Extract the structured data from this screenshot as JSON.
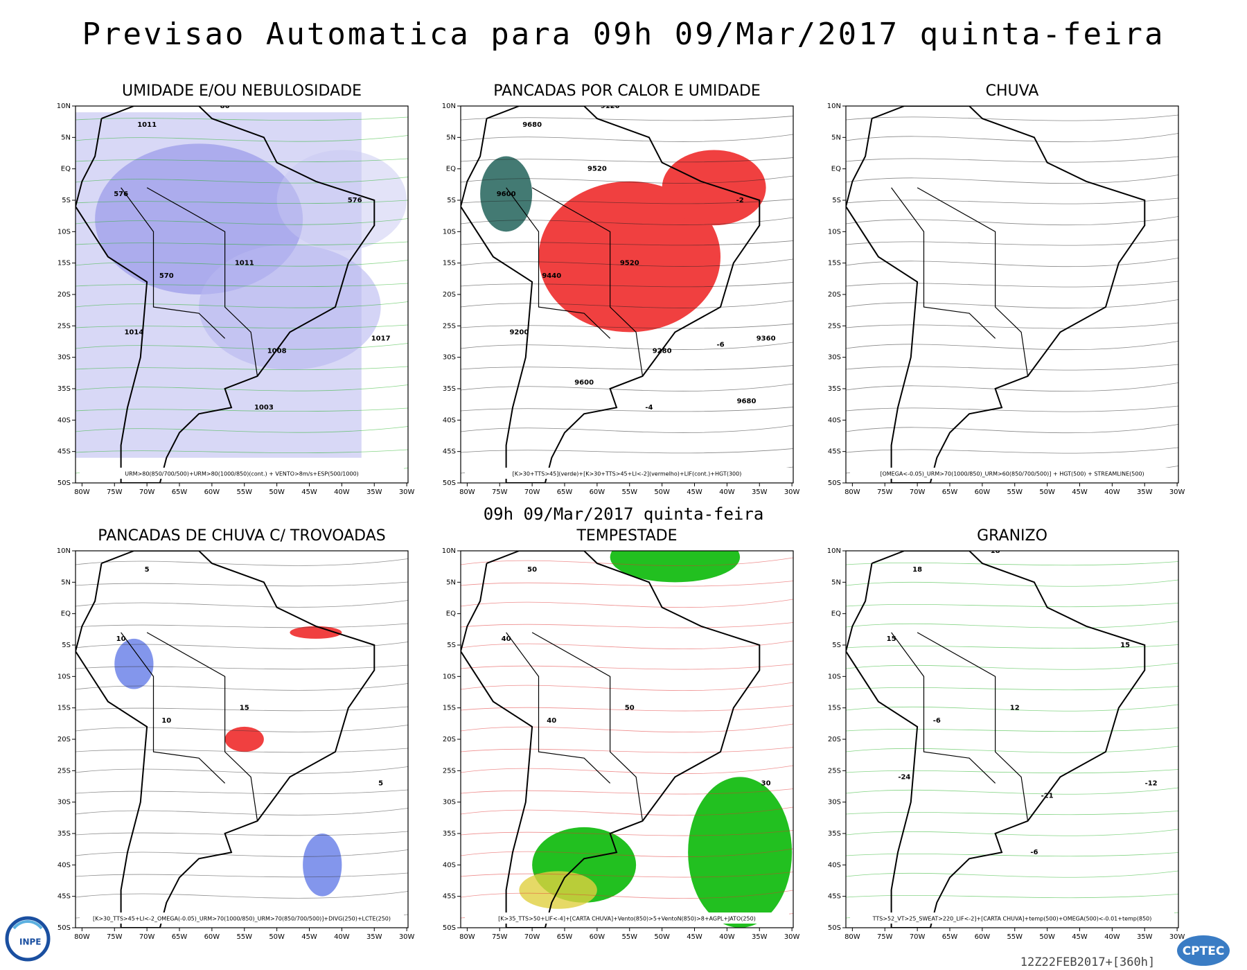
{
  "header": {
    "title": "Previsao Automatica  para 09h 09/Mar/2017 quinta-feira"
  },
  "subheader": "09h 09/Mar/2017 quinta-feira",
  "lat_labels": [
    "10N",
    "5N",
    "EQ",
    "5S",
    "10S",
    "15S",
    "20S",
    "25S",
    "30S",
    "35S",
    "40S",
    "45S",
    "50S"
  ],
  "lon_labels": [
    "80W",
    "75W",
    "70W",
    "65W",
    "60W",
    "55W",
    "50W",
    "45W",
    "40W",
    "35W",
    "30W"
  ],
  "panels": [
    {
      "title": "UMIDADE E/OU NEBULOSIDADE",
      "caption": "URM>80(850/700/500)+URM>80(1000/850)(cont.) + VENTO>8m/s+ESP(500/1000)",
      "labels": [
        "1011",
        "576",
        "1011",
        "570",
        "1017",
        "1008",
        "1014",
        "80",
        "576",
        "1003"
      ]
    },
    {
      "title": "PANCADAS POR CALOR E UMIDADE",
      "caption": "[K>30+TTS>45](verde)+[K>30+TTS>45+LI<-2](vermelho)+LIF(cont.)+HGT(300)",
      "labels": [
        "9680",
        "9600",
        "9520",
        "9440",
        "9360",
        "9280",
        "9200",
        "9120",
        "-2",
        "-4",
        "-6",
        "9680",
        "9600",
        "9520"
      ]
    },
    {
      "title": "CHUVA",
      "caption": "[OMEGA<-0.05)_URM>70(1000/850)_URM>60(850/700/500)] + HGT(500) + STREAMLINE(500)",
      "labels": []
    },
    {
      "title": "PANCADAS DE CHUVA C/ TROVOADAS",
      "caption": "[K>30_TTS>45+LI<-2_OMEGA(-0.05)_URM>70(1000/850)_URM>70(850/700/500)]+DIVG(250)+LCTE(250)",
      "labels": [
        "5",
        "10",
        "15",
        "10",
        "5"
      ]
    },
    {
      "title": "TEMPESTADE",
      "caption": "[K>35_TTS>50+LIF<-4]+[CARTA CHUVA]+Vento(850)>5+VentoN(850)>8+AGPL+JATO(250)",
      "labels": [
        "50",
        "40",
        "50",
        "40",
        "30"
      ]
    },
    {
      "title": "GRANIZO",
      "caption": "TTS>52_VT>25_SWEAT>220_LIF<-2]+[CARTA CHUVA]+temp(500)+OMEGA(500)<-0.01+temp(850)",
      "labels": [
        "18",
        "15",
        "12",
        "-6",
        "-12",
        "-21",
        "-24",
        "18",
        "15",
        "-6"
      ]
    }
  ],
  "footer": {
    "run": "12Z22FEB2017+[360h]",
    "logo_left": "INPE",
    "logo_right": "CPTEC"
  }
}
